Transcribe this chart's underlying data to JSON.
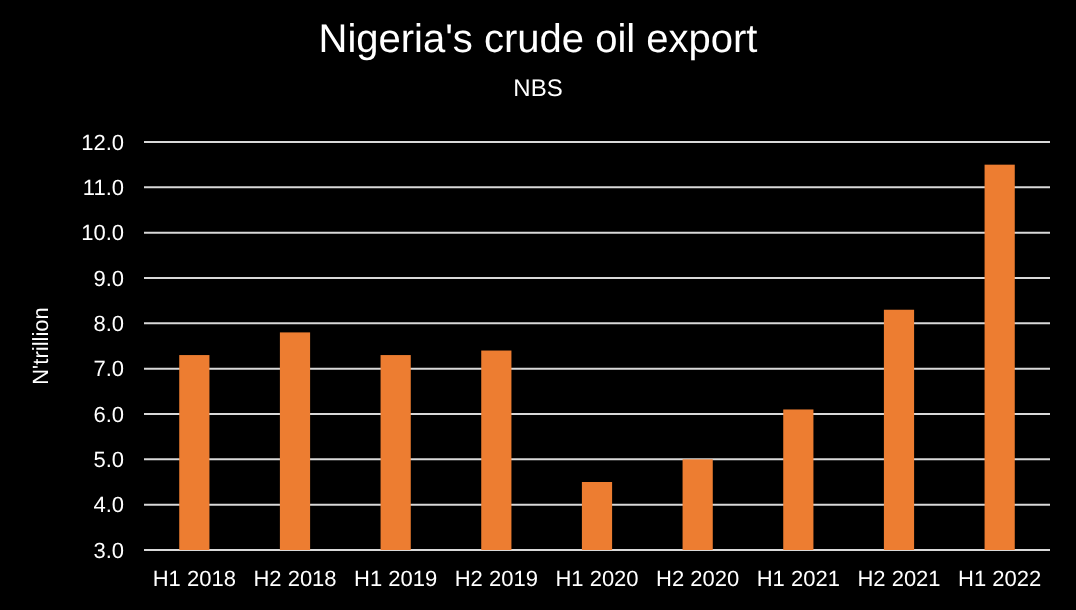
{
  "chart_data": {
    "type": "bar",
    "title": "Nigeria's crude oil export",
    "subtitle": "NBS",
    "ylabel": "N'trillion",
    "categories": [
      "H1 2018",
      "H2 2018",
      "H1 2019",
      "H2 2019",
      "H1 2020",
      "H2 2020",
      "H1 2021",
      "H2 2021",
      "H1 2022"
    ],
    "values": [
      7.3,
      7.8,
      7.3,
      7.4,
      4.5,
      5.0,
      6.1,
      8.3,
      11.5
    ],
    "color": "#ed7d31",
    "ylim": [
      3,
      12
    ],
    "yticks": [
      {
        "value": 3,
        "label": "3.0"
      },
      {
        "value": 4,
        "label": "4.0"
      },
      {
        "value": 5,
        "label": "5.0"
      },
      {
        "value": 6,
        "label": "6.0"
      },
      {
        "value": 7,
        "label": "7.0"
      },
      {
        "value": 8,
        "label": "8.0"
      },
      {
        "value": 9,
        "label": "9.0"
      },
      {
        "value": 10,
        "label": "10.0"
      },
      {
        "value": 11,
        "label": "11.0"
      },
      {
        "value": 12,
        "label": "12.0"
      }
    ],
    "grid": "y"
  }
}
